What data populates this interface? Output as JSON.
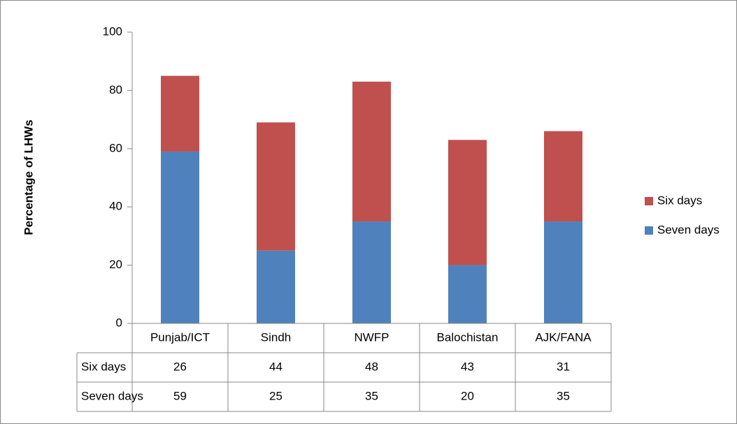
{
  "chart_data": {
    "type": "stacked_bar",
    "y_label": "Percentage of LHWs",
    "categories": [
      "Punjab/ICT",
      "Sindh",
      "NWFP",
      "Balochistan",
      "AJK/FANA"
    ],
    "series": [
      {
        "name": "Seven days",
        "color": "#4f81bd",
        "values": [
          59,
          25,
          35,
          20,
          35
        ]
      },
      {
        "name": "Six days",
        "color": "#c0504d",
        "values": [
          26,
          44,
          48,
          43,
          31
        ]
      }
    ],
    "ylim": [
      0,
      100
    ],
    "yticks": [
      0,
      20,
      40,
      60,
      80,
      100
    ],
    "grid": false,
    "legend": "right",
    "data_table": true
  }
}
